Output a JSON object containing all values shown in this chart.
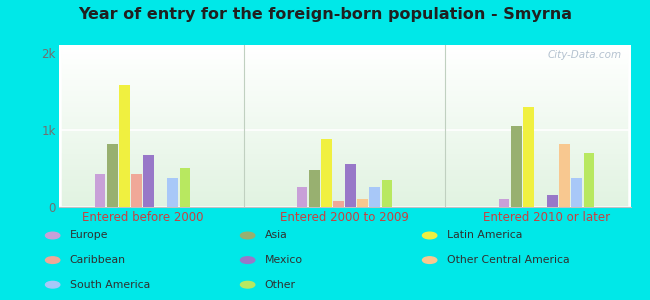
{
  "title": "Year of entry for the foreign-born population - Smyrna",
  "groups": [
    "Entered before 2000",
    "Entered 2000 to 2009",
    "Entered 2010 or later"
  ],
  "series": [
    {
      "label": "Europe",
      "color": "#c8a0d8",
      "values": [
        430,
        260,
        100
      ]
    },
    {
      "label": "Asia",
      "color": "#98b070",
      "values": [
        820,
        480,
        1050
      ]
    },
    {
      "label": "Latin America",
      "color": "#f0f040",
      "values": [
        1580,
        880,
        1300
      ]
    },
    {
      "label": "Caribbean",
      "color": "#f0a898",
      "values": [
        430,
        80,
        0
      ]
    },
    {
      "label": "Mexico",
      "color": "#9878c8",
      "values": [
        680,
        560,
        150
      ]
    },
    {
      "label": "Other Central America",
      "color": "#f8c890",
      "values": [
        0,
        100,
        820
      ]
    },
    {
      "label": "South America",
      "color": "#a8c8f8",
      "values": [
        380,
        260,
        380
      ]
    },
    {
      "label": "Other",
      "color": "#b8e860",
      "values": [
        500,
        350,
        700
      ]
    }
  ],
  "ylim": [
    0,
    2100
  ],
  "yticks": [
    0,
    1000,
    2000
  ],
  "ytick_labels": [
    "0",
    "1k",
    "2k"
  ],
  "background_outer": "#00e8e8",
  "title_color": "#202020",
  "axis_label_color": "#c84040",
  "watermark": "City-Data.com",
  "legend_cols": [
    [
      [
        "Europe",
        "#c8a0d8"
      ],
      [
        "Caribbean",
        "#f0a898"
      ],
      [
        "South America",
        "#a8c8f8"
      ]
    ],
    [
      [
        "Asia",
        "#98b070"
      ],
      [
        "Mexico",
        "#9878c8"
      ],
      [
        "Other",
        "#b8e860"
      ]
    ],
    [
      [
        "Latin America",
        "#f0f040"
      ],
      [
        "Other Central America",
        "#f8c890"
      ]
    ]
  ]
}
